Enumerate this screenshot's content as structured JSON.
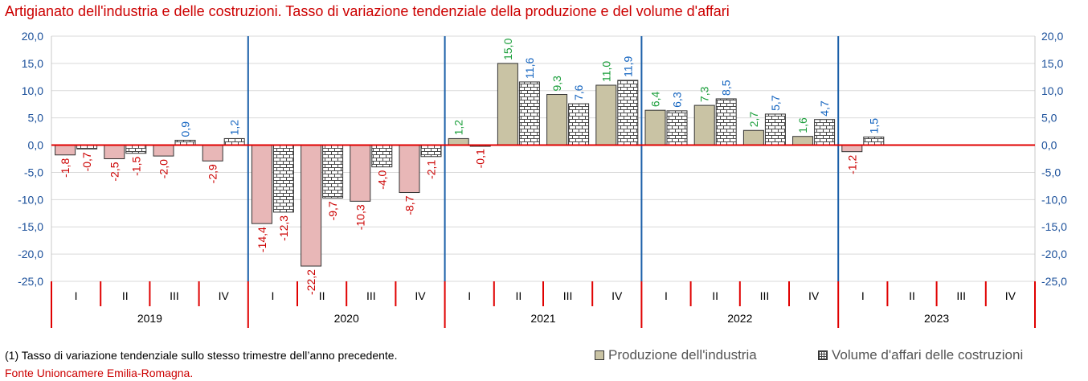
{
  "title": "Artigianato dell'industria e delle costruzioni. Tasso di variazione tendenziale della produzione e del volume d'affari",
  "footnote": "(1) Tasso di variazione tendenziale sullo stesso trimestre dell’anno precedente.",
  "source": "Fonte Unioncamere Emilia-Romagna.",
  "colors": {
    "title": "#cc0000",
    "production_positive": "#c9c3a4",
    "production_negative": "#e8b7b7",
    "label_negative": "#cc0000",
    "label_production_positive": "#1a9e3a",
    "label_volume_positive": "#1565c0",
    "zero_line": "#e00000",
    "year_divider": "#1a5fa8",
    "axis_text": "#1a4f9a"
  },
  "chart_data": {
    "type": "bar",
    "ylim": [
      -25,
      20
    ],
    "y_ticks": [
      "20,0",
      "15,0",
      "10,0",
      "5,0",
      "0,0",
      "-5,0",
      "-10,0",
      "-15,0",
      "-20,0",
      "-25,0"
    ],
    "years": [
      "2019",
      "2020",
      "2021",
      "2022",
      "2023"
    ],
    "quarters": [
      "I",
      "II",
      "III",
      "IV"
    ],
    "grid": true,
    "legend_position": "bottom-right",
    "series": [
      {
        "name": "Produzione dell'industria",
        "values": [
          -1.8,
          -2.5,
          -2.0,
          -2.9,
          -14.4,
          -22.2,
          -10.3,
          -8.7,
          1.2,
          15.0,
          9.3,
          11.0,
          6.4,
          7.3,
          2.7,
          1.6,
          -1.2,
          null,
          null,
          null
        ],
        "labels": [
          "-1,8",
          "-2,5",
          "-2,0",
          "-2,9",
          "-14,4",
          "-22,2",
          "-10,3",
          "-8,7",
          "1,2",
          "15,0",
          "9,3",
          "11,0",
          "6,4",
          "7,3",
          "2,7",
          "1,6",
          "-1,2",
          "",
          "",
          ""
        ]
      },
      {
        "name": "Volume d'affari delle costruzioni",
        "values": [
          -0.7,
          -1.5,
          0.9,
          1.2,
          -12.3,
          -9.7,
          -4.0,
          -2.1,
          -0.1,
          11.6,
          7.6,
          11.9,
          6.3,
          8.5,
          5.7,
          4.7,
          1.5,
          null,
          null,
          null
        ],
        "labels": [
          "-0,7",
          "-1,5",
          "0,9",
          "1,2",
          "-12,3",
          "-9,7",
          "-4,0",
          "-2,1",
          "-0,1",
          "11,6",
          "7,6",
          "11,9",
          "6,3",
          "8,5",
          "5,7",
          "4,7",
          "1,5",
          "",
          "",
          ""
        ]
      }
    ]
  }
}
